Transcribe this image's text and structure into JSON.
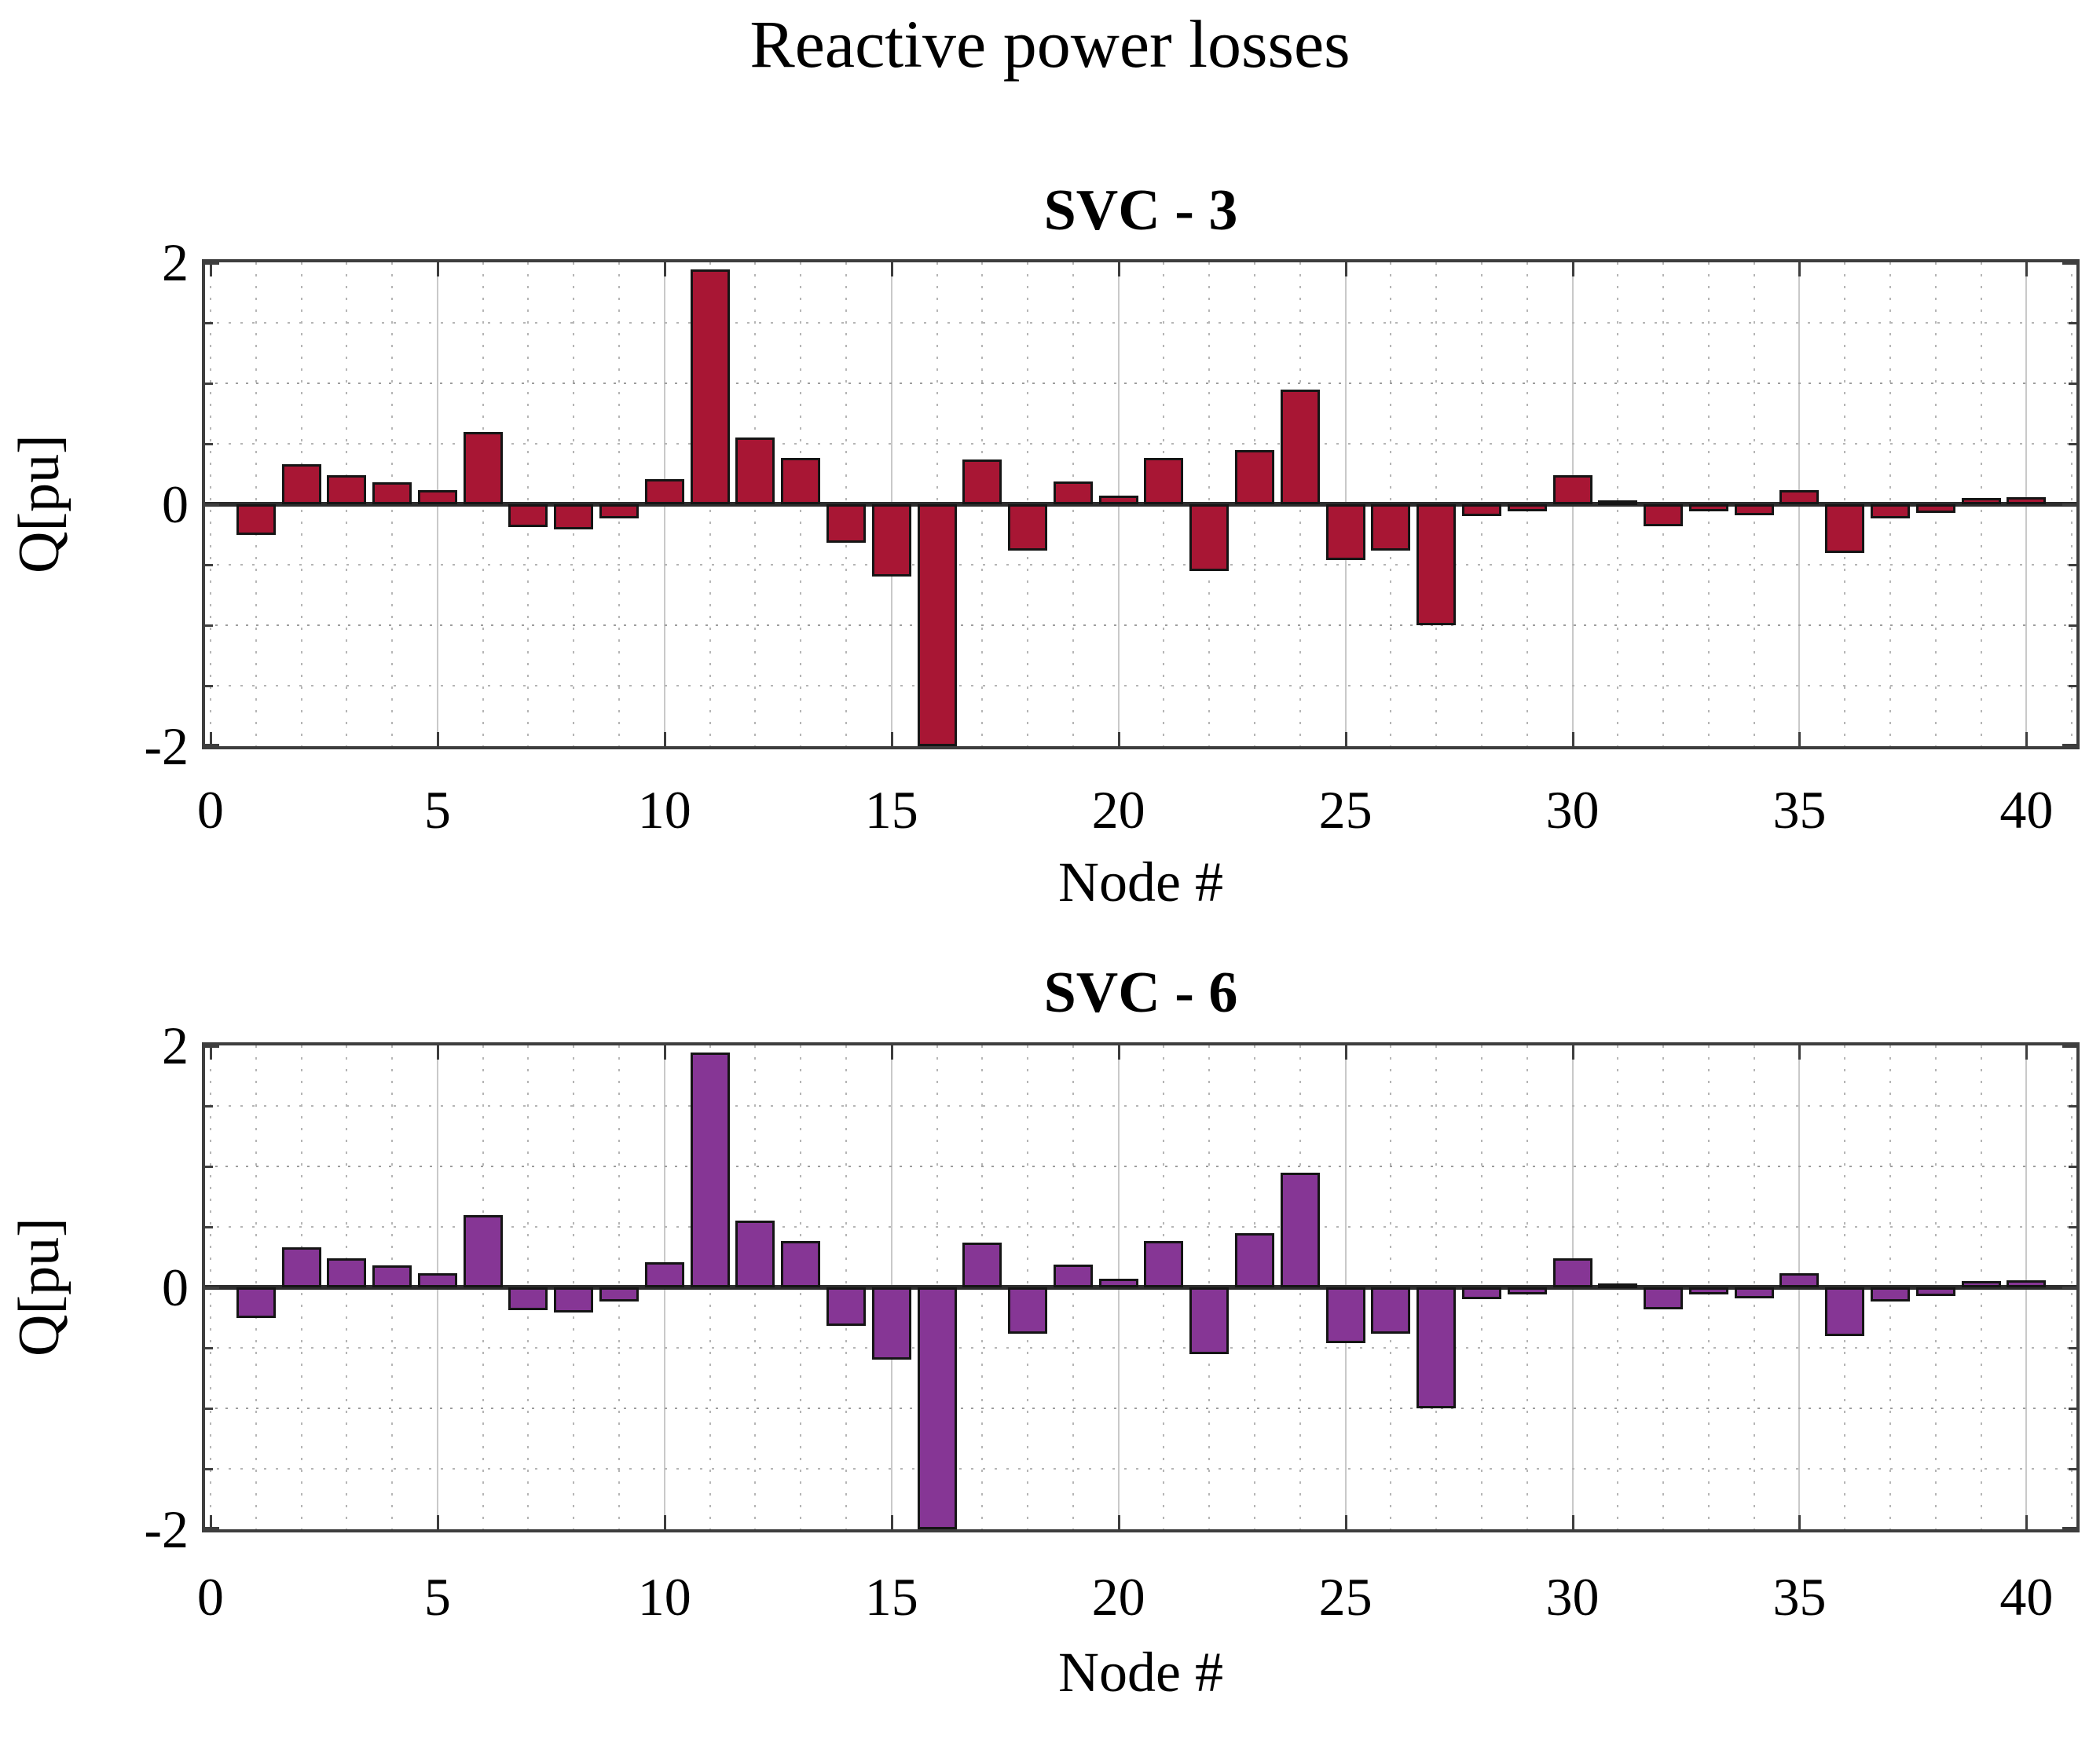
{
  "figure": {
    "title": "Reactive power losses",
    "background": "#ffffff"
  },
  "charts": [
    {
      "title": "SVC - 3",
      "ylabel": "Q[pu]",
      "xlabel": "Node #",
      "ytick_labels": [
        "2",
        "0",
        "-2"
      ],
      "xtick_labels": [
        "0",
        "5",
        "10",
        "15",
        "20",
        "25",
        "30",
        "35",
        "40"
      ]
    },
    {
      "title": "SVC - 6",
      "ylabel": "Q[pu]",
      "xlabel": "Node #",
      "ytick_labels": [
        "2",
        "0",
        "-2"
      ],
      "xtick_labels": [
        "0",
        "5",
        "10",
        "15",
        "20",
        "25",
        "30",
        "35",
        "40"
      ]
    }
  ],
  "chart_data": {
    "type": "bar",
    "title": "Reactive power losses",
    "xlabel": "Node #",
    "ylabel": "Q[pu]",
    "xlim": [
      0,
      41
    ],
    "ylim": [
      -2,
      2
    ],
    "xticks": [
      0,
      5,
      10,
      15,
      20,
      25,
      30,
      35,
      40
    ],
    "yticks": [
      2,
      0,
      -2
    ],
    "grid": {
      "vertical_minor_every": 1,
      "vertical_major_every": 5,
      "horizontal_dotted_every": 0.5
    },
    "legend": "none",
    "x": [
      1,
      2,
      3,
      4,
      5,
      6,
      7,
      8,
      9,
      10,
      11,
      12,
      13,
      14,
      15,
      16,
      17,
      18,
      19,
      20,
      21,
      22,
      23,
      24,
      25,
      26,
      27,
      28,
      29,
      30,
      31,
      32,
      33,
      34,
      35,
      36,
      37,
      38,
      39,
      40
    ],
    "series": [
      {
        "name": "SVC - 3",
        "color": "#a81634",
        "edge_color": "#151515",
        "values": [
          -0.25,
          0.33,
          0.24,
          0.18,
          0.12,
          0.6,
          -0.19,
          -0.21,
          -0.12,
          0.21,
          1.94,
          0.55,
          0.38,
          -0.32,
          -0.6,
          -2,
          0.37,
          -0.38,
          0.19,
          0.07,
          0.38,
          -0.55,
          0.45,
          0.95,
          -0.46,
          -0.38,
          -1,
          -0.1,
          -0.06,
          0.24,
          0.03,
          -0.18,
          -0.06,
          -0.09,
          0.12,
          -0.4,
          -0.12,
          -0.07,
          0.05,
          0.06
        ]
      },
      {
        "name": "SVC - 6",
        "color": "#863695",
        "edge_color": "#151515",
        "values": [
          -0.25,
          0.33,
          0.24,
          0.18,
          0.12,
          0.6,
          -0.19,
          -0.21,
          -0.12,
          0.21,
          1.94,
          0.55,
          0.38,
          -0.32,
          -0.6,
          -2,
          0.37,
          -0.38,
          0.19,
          0.07,
          0.38,
          -0.55,
          0.45,
          0.95,
          -0.46,
          -0.38,
          -1,
          -0.1,
          -0.06,
          0.24,
          0.03,
          -0.18,
          -0.06,
          -0.09,
          0.12,
          -0.4,
          -0.12,
          -0.07,
          0.05,
          0.06
        ]
      }
    ]
  }
}
